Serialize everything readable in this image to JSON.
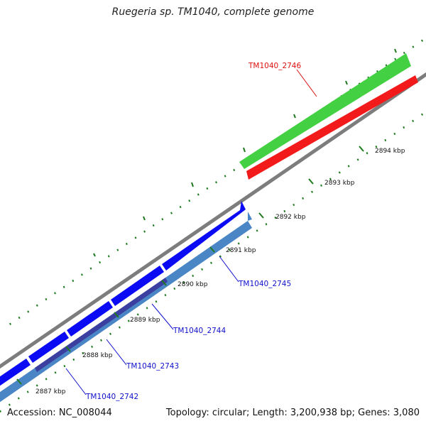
{
  "title": "Ruegeria sp. TM1040, complete genome",
  "footer": {
    "accession": "Accession: NC_008044",
    "summary": "Topology: circular; Length: 3,200,938 bp; Genes: 3,080"
  },
  "colors": {
    "forward_cds": "#0a0af5",
    "reverse_cds": "#4a86c5",
    "forward_rna": "#43d143",
    "reverse_rna": "#f21a1a",
    "backbone": "#7d7d7d",
    "minor_tick": "#1f7a1f",
    "forward_label": "#1010cc",
    "highlight_label": "#dd1111"
  },
  "ticks": [
    "2887 kbp",
    "2888 kbp",
    "2889 kbp",
    "2890 kbp",
    "2891 kbp",
    "2892 kbp",
    "2893 kbp",
    "2894 kbp"
  ],
  "genes": [
    {
      "id": "TM1040_2742",
      "strand": "reverse",
      "color": "blue"
    },
    {
      "id": "TM1040_2743",
      "strand": "reverse",
      "color": "blue"
    },
    {
      "id": "TM1040_2744",
      "strand": "reverse",
      "color": "blue"
    },
    {
      "id": "TM1040_2745",
      "strand": "reverse",
      "color": "blue"
    },
    {
      "id": "TM1040_2746",
      "strand": "forward",
      "color": "red"
    }
  ]
}
